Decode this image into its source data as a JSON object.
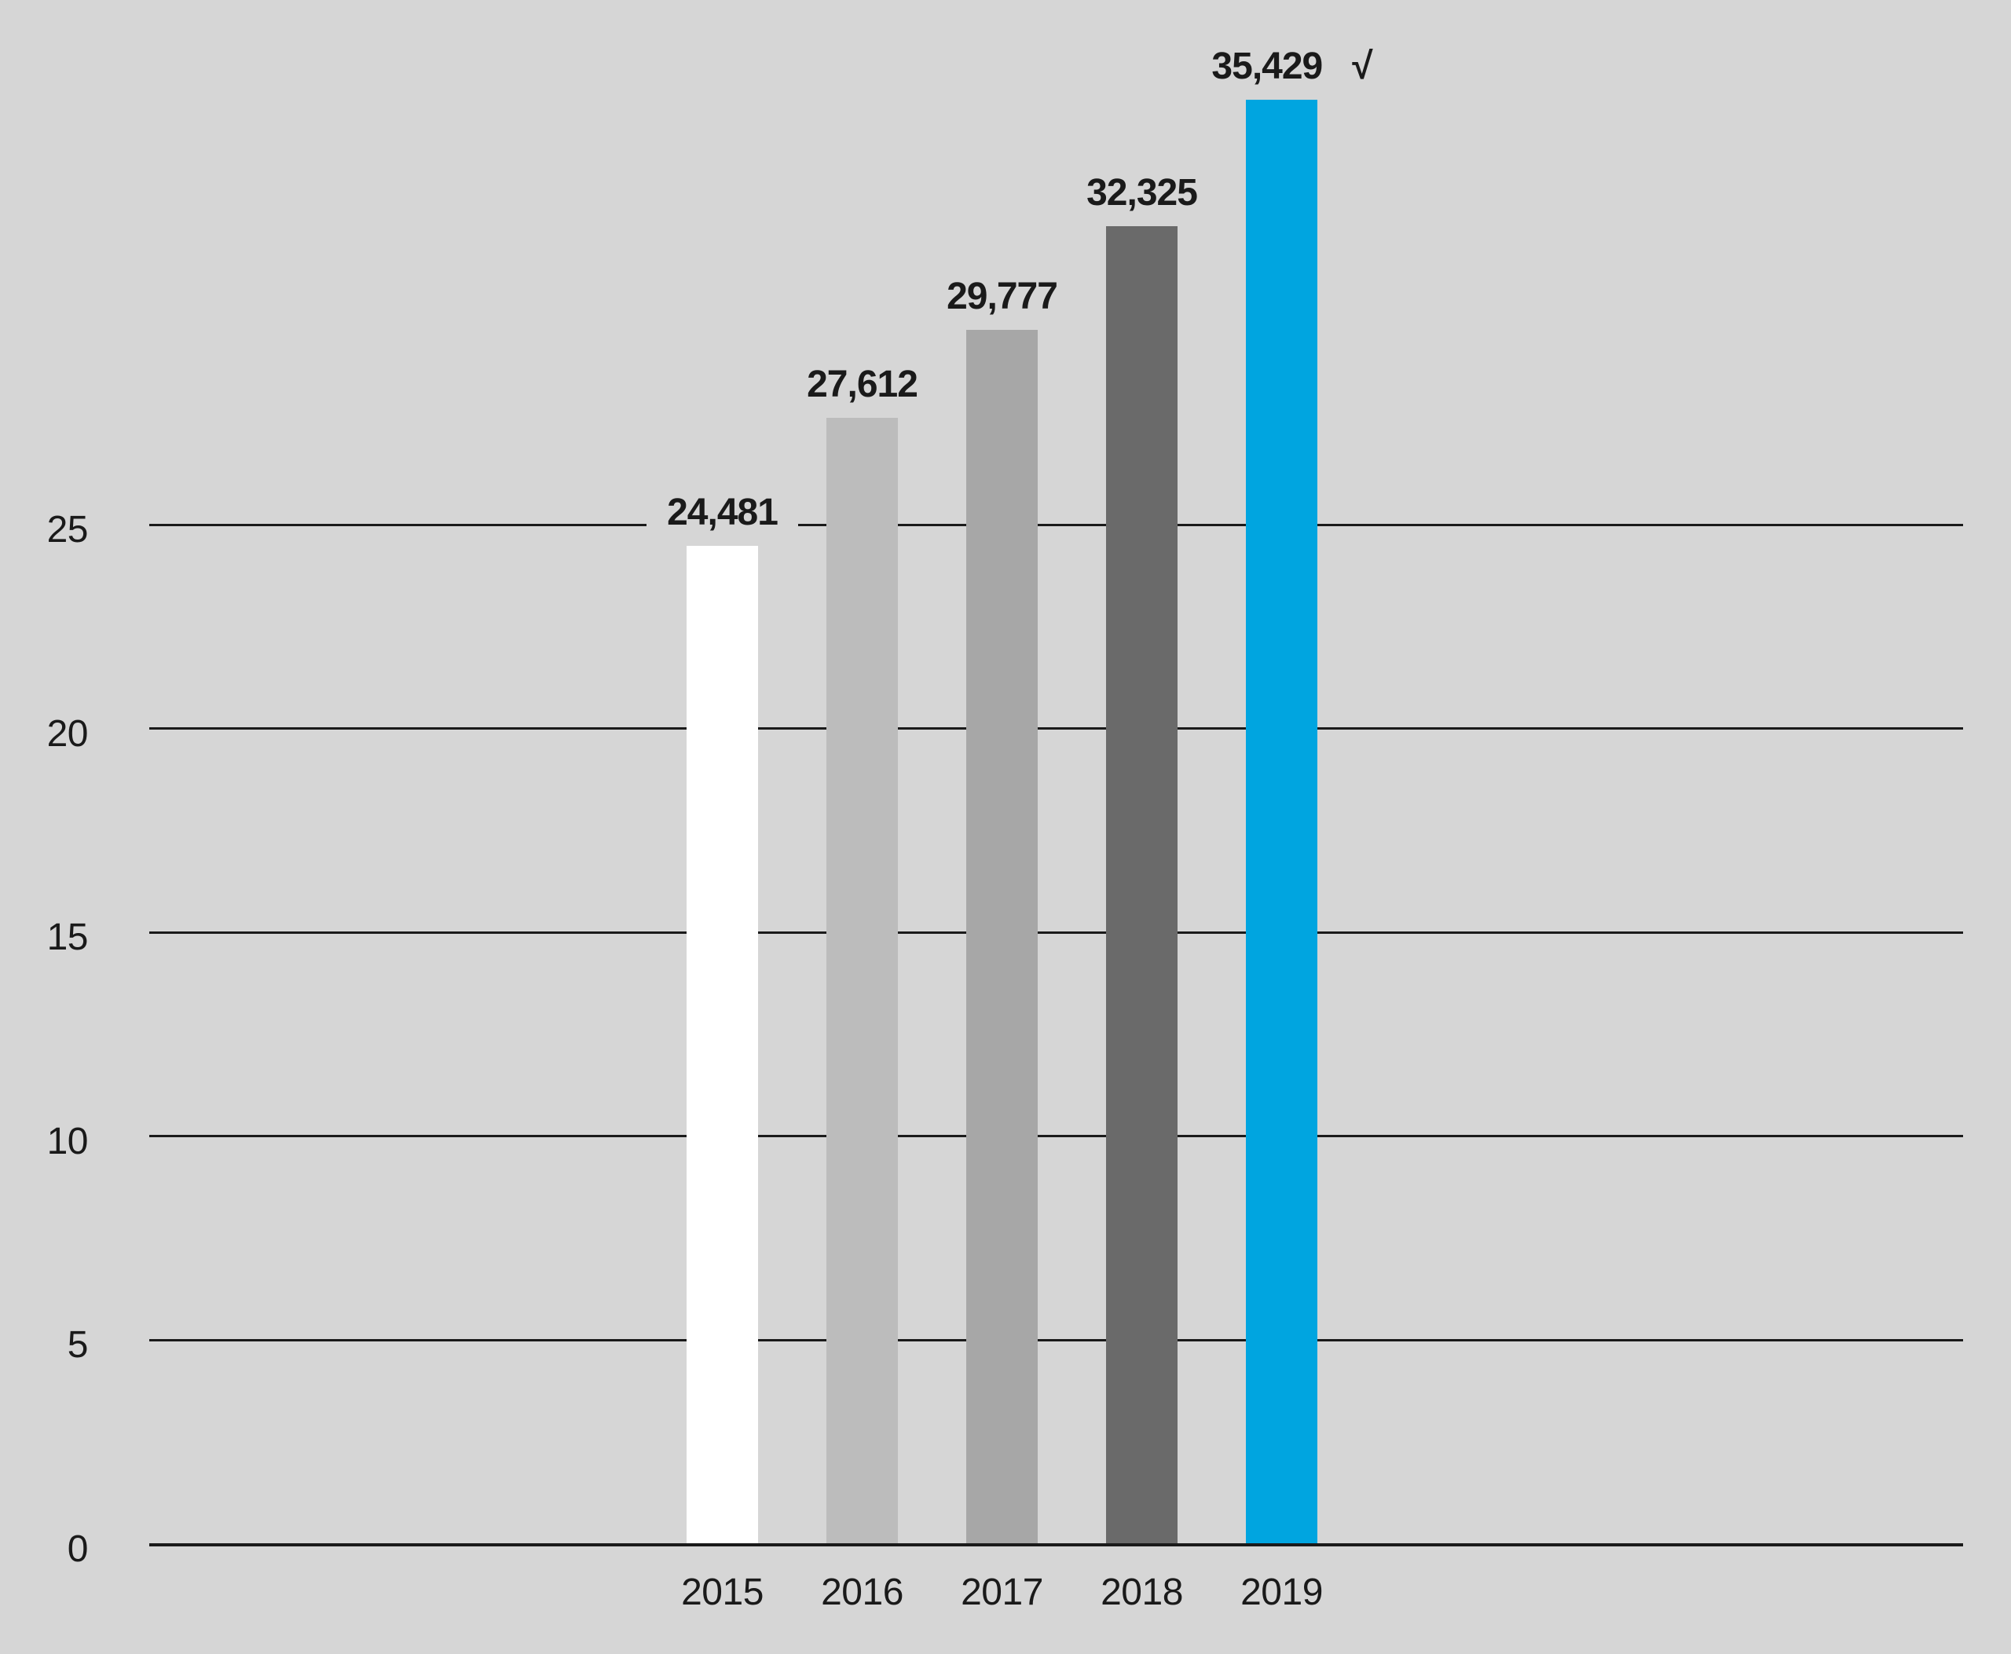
{
  "chart_data": {
    "type": "bar",
    "title": "",
    "xlabel": "",
    "ylabel": "",
    "categories": [
      "2015",
      "2016",
      "2017",
      "2018",
      "2019"
    ],
    "values": [
      24481,
      27612,
      29777,
      32325,
      35429
    ],
    "value_labels": [
      "24,481",
      "27,612",
      "29,777",
      "32,325",
      "35,429"
    ],
    "bar_colors": [
      "#FFFFFF",
      "#BCBCBC",
      "#A7A7A7",
      "#6A6A6A",
      "#00A5E0"
    ],
    "highlight_index": 4,
    "checkmark": {
      "index": 4,
      "glyph": "√"
    },
    "y_axis": {
      "ticks": [
        0,
        5,
        10,
        15,
        20,
        25
      ],
      "tick_labels": [
        "0",
        "5",
        "10",
        "15",
        "20",
        "25"
      ],
      "labeled_range": [
        0,
        25
      ],
      "values_per_axis_unit": 1000
    },
    "grid": true,
    "legend": false,
    "colors": {
      "background": "#D6D6D6",
      "gridline": "#1A1A1A",
      "baseline": "#1A1A1A",
      "text": "#1A1A1A"
    }
  }
}
